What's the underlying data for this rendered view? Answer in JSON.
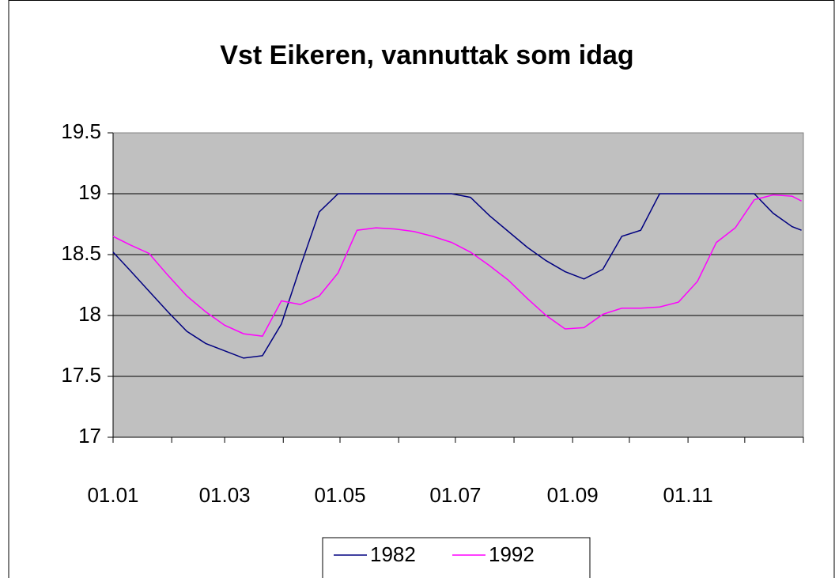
{
  "chart_data": {
    "type": "line",
    "title": "Vst Eikeren, vannuttak som idag",
    "x": [
      1,
      10,
      20,
      30,
      40,
      50,
      60,
      70,
      80,
      90,
      100,
      110,
      120,
      130,
      140,
      150,
      160,
      170,
      180,
      190,
      200,
      210,
      220,
      230,
      240,
      250,
      260,
      270,
      280,
      290,
      300,
      310,
      320,
      330,
      340,
      350,
      360,
      365
    ],
    "series": [
      {
        "name": "1982",
        "color": "#000080",
        "values": [
          18.52,
          18.37,
          18.2,
          18.03,
          17.87,
          17.77,
          17.71,
          17.65,
          17.67,
          17.93,
          18.4,
          18.85,
          19,
          19,
          19,
          19,
          19,
          19,
          19,
          18.97,
          18.82,
          18.69,
          18.56,
          18.45,
          18.36,
          18.3,
          18.38,
          18.65,
          18.7,
          19,
          19,
          19,
          19,
          19,
          19,
          18.84,
          18.73,
          18.7
        ]
      },
      {
        "name": "1992",
        "color": "#ff00ff",
        "values": [
          18.65,
          18.58,
          18.51,
          18.33,
          18.16,
          18.03,
          17.92,
          17.85,
          17.83,
          18.12,
          18.09,
          18.16,
          18.35,
          18.7,
          18.72,
          18.71,
          18.69,
          18.65,
          18.6,
          18.52,
          18.41,
          18.29,
          18.14,
          18,
          17.89,
          17.9,
          18.01,
          18.06,
          18.06,
          18.07,
          18.11,
          18.28,
          18.6,
          18.72,
          18.95,
          18.99,
          18.98,
          18.94
        ]
      }
    ],
    "xlim": [
      1,
      366
    ],
    "xticks": [
      {
        "value": 1,
        "label": "01.01"
      },
      {
        "value": 60,
        "label": "01.03"
      },
      {
        "value": 121,
        "label": "01.05"
      },
      {
        "value": 182,
        "label": "01.07"
      },
      {
        "value": 244,
        "label": "01.09"
      },
      {
        "value": 305,
        "label": "01.11"
      }
    ],
    "xminorticks": [
      32,
      91,
      152,
      213,
      274,
      335,
      366
    ],
    "ylim": [
      17,
      19.5
    ],
    "yticks": [
      17,
      17.5,
      18,
      18.5,
      19,
      19.5
    ],
    "grid": true,
    "legend": "bottom"
  }
}
